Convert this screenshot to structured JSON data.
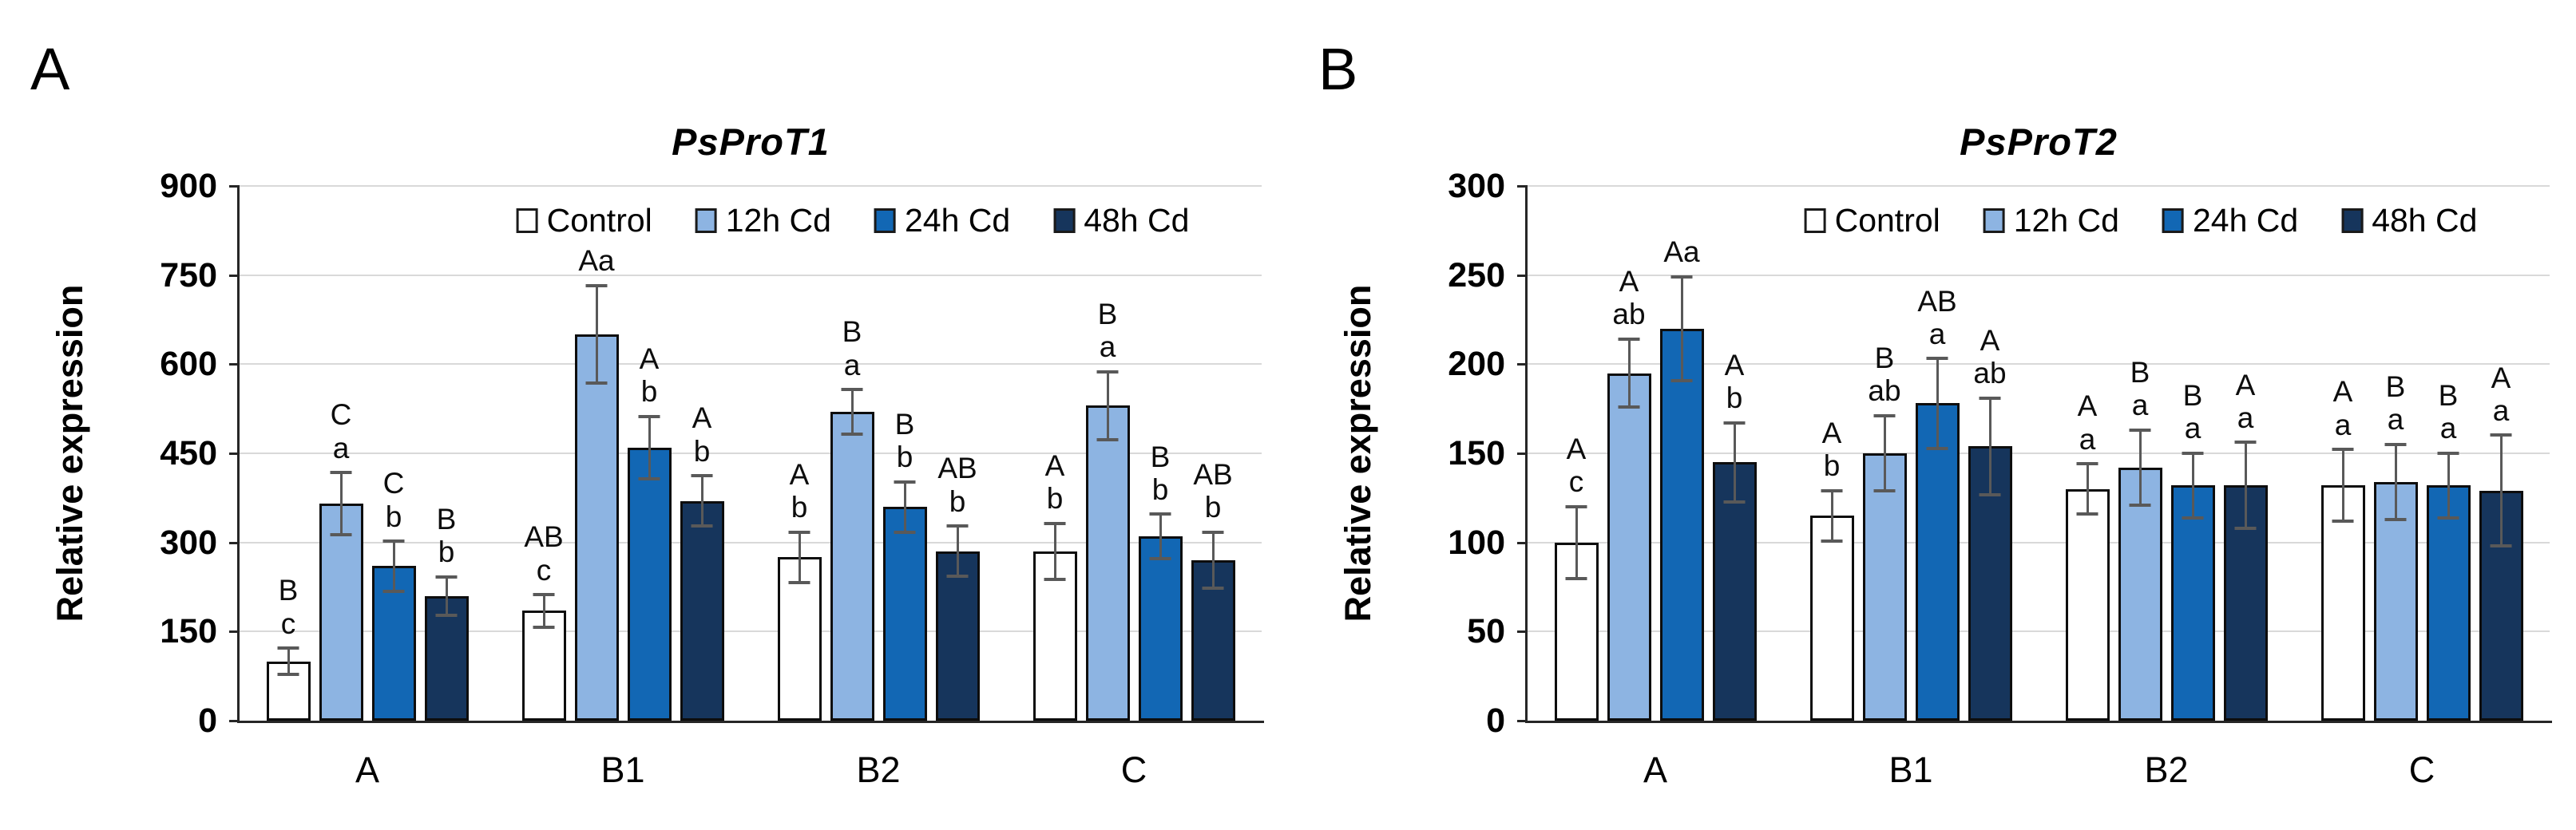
{
  "figure_caption": "Relative expression bar charts",
  "chart_data": [
    {
      "panel_label": "A",
      "type": "bar",
      "title": "PsProT1",
      "xlabel": "",
      "ylabel": "Relative expression",
      "ylim": [
        0,
        900
      ],
      "yticks": [
        0,
        150,
        300,
        450,
        600,
        750,
        900
      ],
      "grid": true,
      "legend_position": "top-inside",
      "categories": [
        "A",
        "B1",
        "B2",
        "C"
      ],
      "series": [
        {
          "name": "Control",
          "color": "#FFFFFF",
          "values": [
            100,
            185,
            275,
            285
          ],
          "errors": [
            25,
            30,
            45,
            50
          ],
          "sig": [
            [
              "B",
              "c"
            ],
            [
              "AB",
              "c"
            ],
            [
              "A",
              "b"
            ],
            [
              "A",
              "b"
            ]
          ]
        },
        {
          "name": "12h Cd",
          "color": "#8DB4E2",
          "values": [
            365,
            650,
            520,
            530
          ],
          "errors": [
            55,
            85,
            40,
            60
          ],
          "sig": [
            [
              "C",
              "a"
            ],
            [
              "Aa"
            ],
            [
              "B",
              "a"
            ],
            [
              "B",
              "a"
            ]
          ]
        },
        {
          "name": "24h Cd",
          "color": "#1267B4",
          "values": [
            260,
            460,
            360,
            310
          ],
          "errors": [
            45,
            55,
            45,
            40
          ],
          "sig": [
            [
              "C",
              "b"
            ],
            [
              "A",
              "b"
            ],
            [
              "B",
              "b"
            ],
            [
              "B",
              "b"
            ]
          ]
        },
        {
          "name": "48h Cd",
          "color": "#16355C",
          "values": [
            210,
            370,
            285,
            270
          ],
          "errors": [
            35,
            45,
            45,
            50
          ],
          "sig": [
            [
              "B",
              "b"
            ],
            [
              "A",
              "b"
            ],
            [
              "AB",
              "b"
            ],
            [
              "AB",
              "b"
            ]
          ]
        }
      ]
    },
    {
      "panel_label": "B",
      "type": "bar",
      "title": "PsProT2",
      "xlabel": "",
      "ylabel": "Relative expression",
      "ylim": [
        0,
        300
      ],
      "yticks": [
        0,
        50,
        100,
        150,
        200,
        250,
        300
      ],
      "grid": true,
      "legend_position": "top-inside",
      "categories": [
        "A",
        "B1",
        "B2",
        "C"
      ],
      "series": [
        {
          "name": "Control",
          "color": "#FFFFFF",
          "values": [
            100,
            115,
            130,
            132
          ],
          "errors": [
            21,
            15,
            15,
            21
          ],
          "sig": [
            [
              "A",
              "c"
            ],
            [
              "A",
              "b"
            ],
            [
              "A",
              "a"
            ],
            [
              "A",
              "a"
            ]
          ]
        },
        {
          "name": "12h Cd",
          "color": "#8DB4E2",
          "values": [
            195,
            150,
            142,
            134
          ],
          "errors": [
            20,
            22,
            22,
            22
          ],
          "sig": [
            [
              "A",
              "ab"
            ],
            [
              "B",
              "ab"
            ],
            [
              "B",
              "a"
            ],
            [
              "B",
              "a"
            ]
          ]
        },
        {
          "name": "24h Cd",
          "color": "#1267B4",
          "values": [
            220,
            178,
            132,
            132
          ],
          "errors": [
            30,
            26,
            19,
            19
          ],
          "sig": [
            [
              "Aa"
            ],
            [
              "AB",
              "a"
            ],
            [
              "B",
              "a"
            ],
            [
              "B",
              "a"
            ]
          ]
        },
        {
          "name": "48h Cd",
          "color": "#16355C",
          "values": [
            145,
            154,
            132,
            129
          ],
          "errors": [
            23,
            28,
            25,
            32
          ],
          "sig": [
            [
              "A",
              "b"
            ],
            [
              "A",
              "ab"
            ],
            [
              "A",
              "a"
            ],
            [
              "A",
              "a"
            ]
          ]
        }
      ]
    }
  ]
}
